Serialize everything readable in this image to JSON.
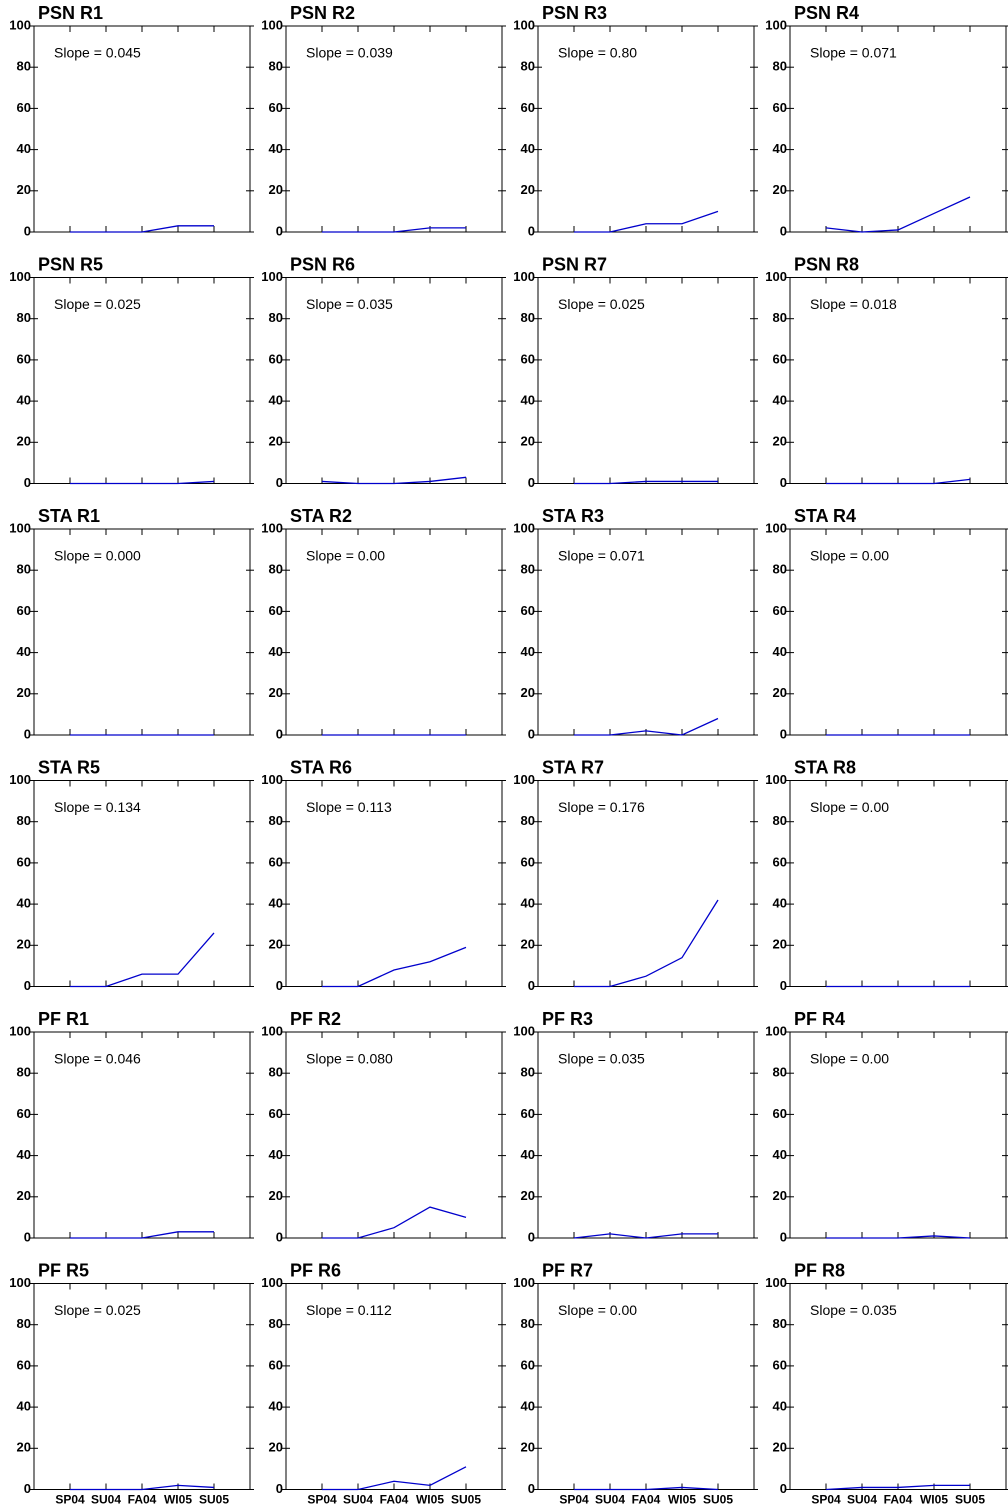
{
  "chart_data": [
    {
      "type": "line",
      "title": "PSN R1",
      "annotation": "Slope = 0.045",
      "categories": [
        null,
        null,
        null,
        null,
        null
      ],
      "values": [
        0,
        0,
        0,
        3,
        3
      ],
      "color": "#0000cc",
      "ylim": [
        0,
        100
      ],
      "yticks": [
        0,
        20,
        40,
        60,
        80,
        100
      ]
    },
    {
      "type": "line",
      "title": "PSN R2",
      "annotation": "Slope = 0.039",
      "categories": [
        null,
        null,
        null,
        null,
        null
      ],
      "values": [
        0,
        0,
        0,
        2,
        2
      ],
      "color": "#0000cc",
      "ylim": [
        0,
        100
      ],
      "yticks": [
        0,
        20,
        40,
        60,
        80,
        100
      ]
    },
    {
      "type": "line",
      "title": "PSN R3",
      "annotation": "Slope = 0.80",
      "categories": [
        null,
        null,
        null,
        null,
        null
      ],
      "values": [
        0,
        0,
        4,
        4,
        10
      ],
      "color": "#0000cc",
      "ylim": [
        0,
        100
      ],
      "yticks": [
        0,
        20,
        40,
        60,
        80,
        100
      ]
    },
    {
      "type": "line",
      "title": "PSN R4",
      "annotation": "Slope = 0.071",
      "categories": [
        null,
        null,
        null,
        null,
        null
      ],
      "values": [
        2,
        0,
        1,
        9,
        17
      ],
      "color": "#0000cc",
      "ylim": [
        0,
        100
      ],
      "yticks": [
        0,
        20,
        40,
        60,
        80,
        100
      ]
    },
    {
      "type": "line",
      "title": "PSN R5",
      "annotation": "Slope = 0.025",
      "categories": [
        null,
        null,
        null,
        null,
        null
      ],
      "values": [
        0,
        0,
        0,
        0,
        1
      ],
      "color": "#0000cc",
      "ylim": [
        0,
        100
      ],
      "yticks": [
        0,
        20,
        40,
        60,
        80,
        100
      ]
    },
    {
      "type": "line",
      "title": "PSN R6",
      "annotation": "Slope = 0.035",
      "categories": [
        null,
        null,
        null,
        null,
        null
      ],
      "values": [
        1,
        0,
        0,
        1,
        3
      ],
      "color": "#0000cc",
      "ylim": [
        0,
        100
      ],
      "yticks": [
        0,
        20,
        40,
        60,
        80,
        100
      ]
    },
    {
      "type": "line",
      "title": "PSN R7",
      "annotation": "Slope = 0.025",
      "categories": [
        null,
        null,
        null,
        null,
        null
      ],
      "values": [
        0,
        0,
        1,
        1,
        1
      ],
      "color": "#0000cc",
      "ylim": [
        0,
        100
      ],
      "yticks": [
        0,
        20,
        40,
        60,
        80,
        100
      ]
    },
    {
      "type": "line",
      "title": "PSN R8",
      "annotation": "Slope = 0.018",
      "categories": [
        null,
        null,
        null,
        null,
        null
      ],
      "values": [
        0,
        0,
        0,
        0,
        2
      ],
      "color": "#0000cc",
      "ylim": [
        0,
        100
      ],
      "yticks": [
        0,
        20,
        40,
        60,
        80,
        100
      ]
    },
    {
      "type": "line",
      "title": "STA R1",
      "annotation": "Slope = 0.000",
      "categories": [
        null,
        null,
        null,
        null,
        null
      ],
      "values": [
        0,
        0,
        0,
        0,
        0
      ],
      "color": "#0000cc",
      "ylim": [
        0,
        100
      ],
      "yticks": [
        0,
        20,
        40,
        60,
        80,
        100
      ]
    },
    {
      "type": "line",
      "title": "STA R2",
      "annotation": "Slope = 0.00",
      "categories": [
        null,
        null,
        null,
        null,
        null
      ],
      "values": [
        0,
        0,
        0,
        0,
        0
      ],
      "color": "#0000cc",
      "ylim": [
        0,
        100
      ],
      "yticks": [
        0,
        20,
        40,
        60,
        80,
        100
      ]
    },
    {
      "type": "line",
      "title": "STA R3",
      "annotation": "Slope = 0.071",
      "categories": [
        null,
        null,
        null,
        null,
        null
      ],
      "values": [
        0,
        0,
        2,
        0,
        8
      ],
      "color": "#0000cc",
      "ylim": [
        0,
        100
      ],
      "yticks": [
        0,
        20,
        40,
        60,
        80,
        100
      ]
    },
    {
      "type": "line",
      "title": "STA R4",
      "annotation": "Slope = 0.00",
      "categories": [
        null,
        null,
        null,
        null,
        null
      ],
      "values": [
        0,
        0,
        0,
        0,
        0
      ],
      "color": "#0000cc",
      "ylim": [
        0,
        100
      ],
      "yticks": [
        0,
        20,
        40,
        60,
        80,
        100
      ]
    },
    {
      "type": "line",
      "title": "STA R5",
      "annotation": "Slope = 0.134",
      "categories": [
        null,
        null,
        null,
        null,
        null
      ],
      "values": [
        0,
        0,
        6,
        6,
        26
      ],
      "color": "#0000cc",
      "ylim": [
        0,
        100
      ],
      "yticks": [
        0,
        20,
        40,
        60,
        80,
        100
      ]
    },
    {
      "type": "line",
      "title": "STA R6",
      "annotation": "Slope = 0.113",
      "categories": [
        null,
        null,
        null,
        null,
        null
      ],
      "values": [
        0,
        0,
        8,
        12,
        19
      ],
      "color": "#0000cc",
      "ylim": [
        0,
        100
      ],
      "yticks": [
        0,
        20,
        40,
        60,
        80,
        100
      ]
    },
    {
      "type": "line",
      "title": "STA R7",
      "annotation": "Slope = 0.176",
      "categories": [
        null,
        null,
        null,
        null,
        null
      ],
      "values": [
        0,
        0,
        5,
        14,
        42
      ],
      "color": "#0000cc",
      "ylim": [
        0,
        100
      ],
      "yticks": [
        0,
        20,
        40,
        60,
        80,
        100
      ]
    },
    {
      "type": "line",
      "title": "STA R8",
      "annotation": "Slope = 0.00",
      "categories": [
        null,
        null,
        null,
        null,
        null
      ],
      "values": [
        0,
        0,
        0,
        0,
        0
      ],
      "color": "#0000cc",
      "ylim": [
        0,
        100
      ],
      "yticks": [
        0,
        20,
        40,
        60,
        80,
        100
      ]
    },
    {
      "type": "line",
      "title": "PF R1",
      "annotation": "Slope = 0.046",
      "categories": [
        null,
        null,
        null,
        null,
        null
      ],
      "values": [
        0,
        0,
        0,
        3,
        3
      ],
      "color": "#0000cc",
      "ylim": [
        0,
        100
      ],
      "yticks": [
        0,
        20,
        40,
        60,
        80,
        100
      ]
    },
    {
      "type": "line",
      "title": "PF R2",
      "annotation": "Slope = 0.080",
      "categories": [
        null,
        null,
        null,
        null,
        null
      ],
      "values": [
        0,
        0,
        5,
        15,
        10
      ],
      "color": "#0000cc",
      "ylim": [
        0,
        100
      ],
      "yticks": [
        0,
        20,
        40,
        60,
        80,
        100
      ]
    },
    {
      "type": "line",
      "title": "PF R3",
      "annotation": "Slope = 0.035",
      "categories": [
        null,
        null,
        null,
        null,
        null
      ],
      "values": [
        0,
        2,
        0,
        2,
        2
      ],
      "color": "#0000cc",
      "ylim": [
        0,
        100
      ],
      "yticks": [
        0,
        20,
        40,
        60,
        80,
        100
      ]
    },
    {
      "type": "line",
      "title": "PF R4",
      "annotation": "Slope = 0.00",
      "categories": [
        null,
        null,
        null,
        null,
        null
      ],
      "values": [
        0,
        0,
        0,
        1,
        0
      ],
      "color": "#0000cc",
      "ylim": [
        0,
        100
      ],
      "yticks": [
        0,
        20,
        40,
        60,
        80,
        100
      ]
    },
    {
      "type": "line",
      "title": "PF R5",
      "annotation": "Slope = 0.025",
      "categories": [
        "SP04",
        "SU04",
        "FA04",
        "WI05",
        "SU05"
      ],
      "values": [
        0,
        0,
        0,
        2,
        1
      ],
      "color": "#0000cc",
      "ylim": [
        0,
        100
      ],
      "yticks": [
        0,
        20,
        40,
        60,
        80,
        100
      ]
    },
    {
      "type": "line",
      "title": "PF R6",
      "annotation": "Slope = 0.112",
      "categories": [
        "SP04",
        "SU04",
        "FA04",
        "WI05",
        "SU05"
      ],
      "values": [
        0,
        0,
        4,
        2,
        11
      ],
      "color": "#0000cc",
      "ylim": [
        0,
        100
      ],
      "yticks": [
        0,
        20,
        40,
        60,
        80,
        100
      ]
    },
    {
      "type": "line",
      "title": "PF R7",
      "annotation": "Slope = 0.00",
      "categories": [
        "SP04",
        "SU04",
        "FA04",
        "WI05",
        "SU05"
      ],
      "values": [
        0,
        0,
        0,
        1,
        0
      ],
      "color": "#0000cc",
      "ylim": [
        0,
        100
      ],
      "yticks": [
        0,
        20,
        40,
        60,
        80,
        100
      ]
    },
    {
      "type": "line",
      "title": "PF R8",
      "annotation": "Slope = 0.035",
      "categories": [
        "SP04",
        "SU04",
        "FA04",
        "WI05",
        "SU05"
      ],
      "values": [
        0,
        1,
        1,
        2,
        2
      ],
      "color": "#0000cc",
      "ylim": [
        0,
        100
      ],
      "yticks": [
        0,
        20,
        40,
        60,
        80,
        100
      ]
    }
  ]
}
